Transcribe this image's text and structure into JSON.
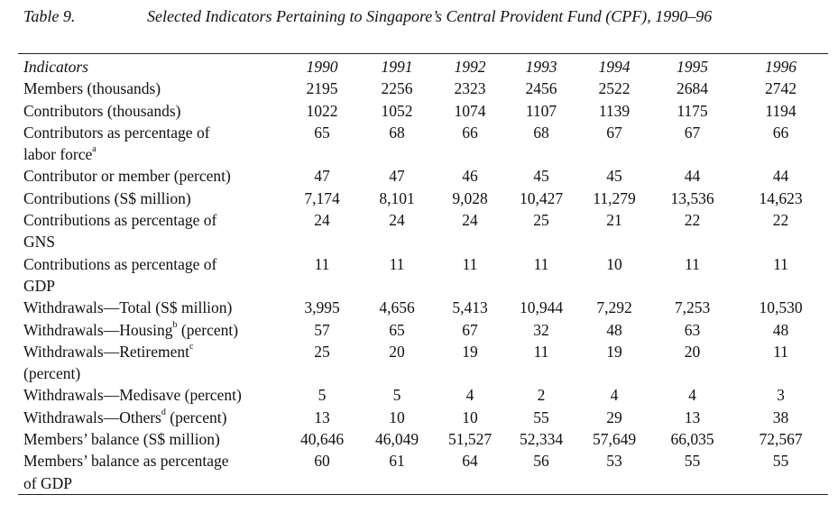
{
  "caption": {
    "number": "Table 9.",
    "title": "Selected Indicators Pertaining to Singapore’s Central Provident Fund (CPF), 1990–96"
  },
  "header": {
    "indicators": "Indicators",
    "years": [
      "1990",
      "1991",
      "1992",
      "1993",
      "1994",
      "1995",
      "1996"
    ]
  },
  "rows": [
    {
      "label_lines": [
        "Members (thousands)"
      ],
      "values": [
        "2195",
        "2256",
        "2323",
        "2456",
        "2522",
        "2684",
        "2742"
      ]
    },
    {
      "label_lines": [
        "Contributors (thousands)"
      ],
      "values": [
        "1022",
        "1052",
        "1074",
        "1107",
        "1139",
        "1175",
        "1194"
      ]
    },
    {
      "label_lines": [
        "Contributors as percentage of",
        "labor force"
      ],
      "sup": "a",
      "values": [
        "65",
        "68",
        "66",
        "68",
        "67",
        "67",
        "66"
      ]
    },
    {
      "label_lines": [
        "Contributor or member (percent)"
      ],
      "values": [
        "47",
        "47",
        "46",
        "45",
        "45",
        "44",
        "44"
      ]
    },
    {
      "label_lines": [
        "Contributions (S$ million)"
      ],
      "values": [
        "7,174",
        "8,101",
        "9,028",
        "10,427",
        "11,279",
        "13,536",
        "14,623"
      ]
    },
    {
      "label_lines": [
        "Contributions as percentage of",
        "GNS"
      ],
      "values": [
        "24",
        "24",
        "24",
        "25",
        "21",
        "22",
        "22"
      ]
    },
    {
      "label_lines": [
        "Contributions as percentage of",
        "GDP"
      ],
      "values": [
        "11",
        "11",
        "11",
        "11",
        "10",
        "11",
        "11"
      ]
    },
    {
      "label_lines": [
        "Withdrawals—Total (S$ million)"
      ],
      "values": [
        "3,995",
        "4,656",
        "5,413",
        "10,944",
        "7,292",
        "7,253",
        "10,530"
      ]
    },
    {
      "label_lines": [
        "Withdrawals—Housing",
        " (percent)"
      ],
      "sup": "b",
      "sup_inline": true,
      "values": [
        "57",
        "65",
        "67",
        "32",
        "48",
        "63",
        "48"
      ]
    },
    {
      "label_lines": [
        "Withdrawals—Retirement",
        "(percent)"
      ],
      "sup": "c",
      "values": [
        "25",
        "20",
        "19",
        "11",
        "19",
        "20",
        "11"
      ]
    },
    {
      "label_lines": [
        "Withdrawals—Medisave (percent)"
      ],
      "values": [
        "5",
        "5",
        "4",
        "2",
        "4",
        "4",
        "3"
      ]
    },
    {
      "label_lines": [
        "Withdrawals—Others",
        " (percent)"
      ],
      "sup": "d",
      "sup_inline": true,
      "values": [
        "13",
        "10",
        "10",
        "55",
        "29",
        "13",
        "38"
      ]
    },
    {
      "label_lines": [
        "Members’ balance (S$ million)"
      ],
      "values": [
        "40,646",
        "46,049",
        "51,527",
        "52,334",
        "57,649",
        "66,035",
        "72,567"
      ]
    },
    {
      "label_lines": [
        "Members’ balance as percentage",
        "of GDP"
      ],
      "values": [
        "60",
        "61",
        "64",
        "56",
        "53",
        "55",
        "55"
      ]
    }
  ]
}
